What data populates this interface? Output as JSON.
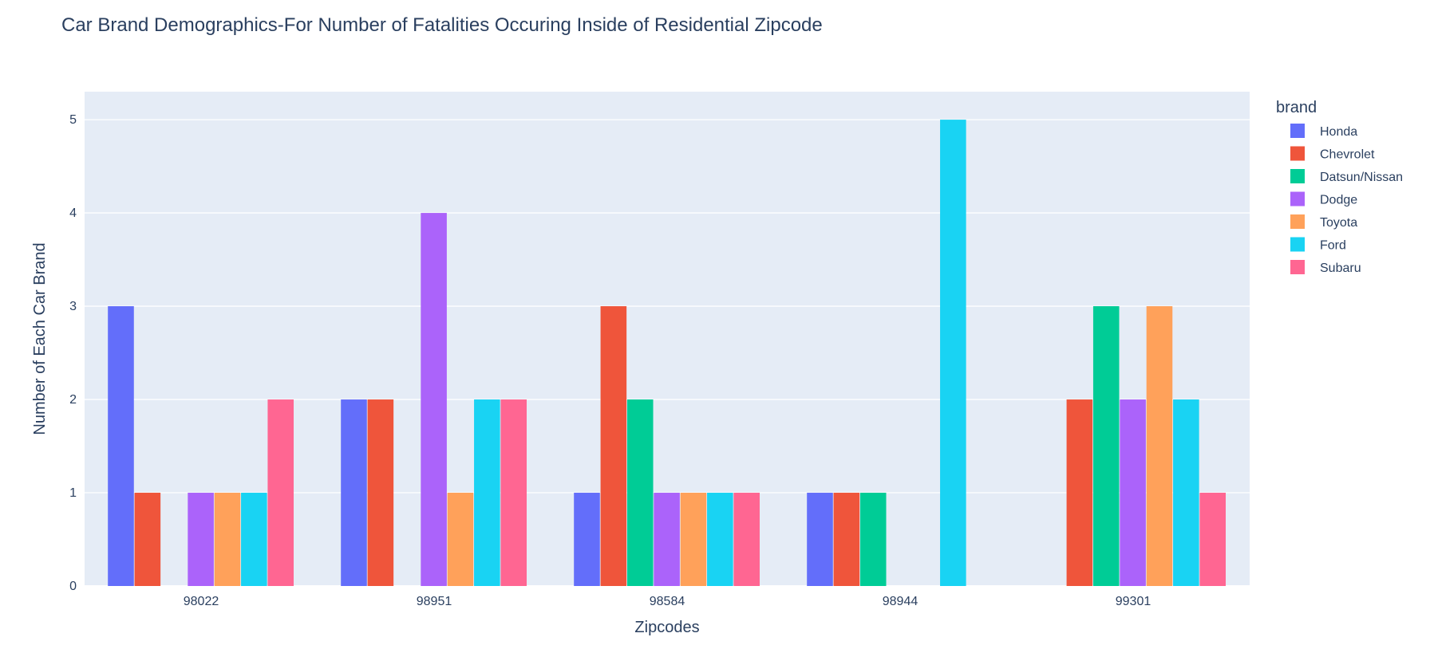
{
  "chart_data": {
    "type": "bar",
    "title": "Car Brand Demographics-For Number of Fatalities Occuring Inside of Residential Zipcode",
    "xlabel": "Zipcodes",
    "ylabel": "Number of Each Car Brand",
    "categories": [
      "98022",
      "98951",
      "98584",
      "98944",
      "99301"
    ],
    "ylim": [
      0,
      5.3
    ],
    "yticks": [
      0,
      1,
      2,
      3,
      4,
      5
    ],
    "grid": true,
    "legend_title": "brand",
    "legend_position": "top-right",
    "series": [
      {
        "name": "Honda",
        "color": "#636efa",
        "values": [
          3,
          2,
          1,
          1,
          0
        ]
      },
      {
        "name": "Chevrolet",
        "color": "#ef553b",
        "values": [
          1,
          2,
          3,
          1,
          2
        ]
      },
      {
        "name": "Datsun/Nissan",
        "color": "#00cc96",
        "values": [
          0,
          0,
          2,
          1,
          3
        ]
      },
      {
        "name": "Dodge",
        "color": "#ab63fa",
        "values": [
          1,
          4,
          1,
          0,
          2
        ]
      },
      {
        "name": "Toyota",
        "color": "#ffa15a",
        "values": [
          1,
          1,
          1,
          0,
          3
        ]
      },
      {
        "name": "Ford",
        "color": "#19d3f3",
        "values": [
          1,
          2,
          1,
          5,
          2
        ]
      },
      {
        "name": "Subaru",
        "color": "#ff6692",
        "values": [
          2,
          2,
          1,
          0,
          1
        ]
      }
    ]
  }
}
